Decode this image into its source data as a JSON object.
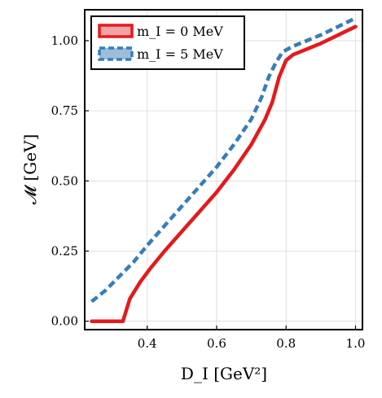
{
  "chart_data": {
    "type": "line",
    "xlabel": "D_I [GeV²]",
    "ylabel": "𝓜 [GeV]",
    "xlim": [
      0.22,
      1.02
    ],
    "ylim": [
      -0.03,
      1.11
    ],
    "grid": true,
    "legend_position": "top-left",
    "x_ticks": [
      "0.4",
      "0.6",
      "0.8",
      "1.0"
    ],
    "x_tick_values": [
      0.4,
      0.6,
      0.8,
      1.0
    ],
    "y_ticks": [
      "0.00",
      "0.25",
      "0.50",
      "0.75",
      "1.00"
    ],
    "y_tick_values": [
      0.0,
      0.25,
      0.5,
      0.75,
      1.0
    ],
    "series": [
      {
        "name": "m_I = 0 MeV",
        "color": "#e41a1c",
        "style": "solid",
        "x": [
          0.24,
          0.33,
          0.35,
          0.38,
          0.41,
          0.45,
          0.5,
          0.55,
          0.6,
          0.65,
          0.7,
          0.74,
          0.76,
          0.78,
          0.8,
          0.82,
          0.9,
          1.0
        ],
        "y": [
          0.0,
          0.0,
          0.08,
          0.14,
          0.19,
          0.25,
          0.32,
          0.39,
          0.46,
          0.54,
          0.63,
          0.72,
          0.78,
          0.87,
          0.93,
          0.95,
          0.99,
          1.05
        ]
      },
      {
        "name": "m_I = 5 MeV",
        "color": "#377eb8",
        "style": "dashed",
        "x": [
          0.24,
          0.28,
          0.32,
          0.36,
          0.4,
          0.45,
          0.5,
          0.55,
          0.6,
          0.65,
          0.7,
          0.73,
          0.75,
          0.77,
          0.79,
          0.82,
          0.9,
          1.0
        ],
        "y": [
          0.07,
          0.11,
          0.16,
          0.21,
          0.27,
          0.34,
          0.41,
          0.48,
          0.55,
          0.63,
          0.72,
          0.8,
          0.87,
          0.92,
          0.96,
          0.98,
          1.02,
          1.08
        ]
      }
    ]
  }
}
